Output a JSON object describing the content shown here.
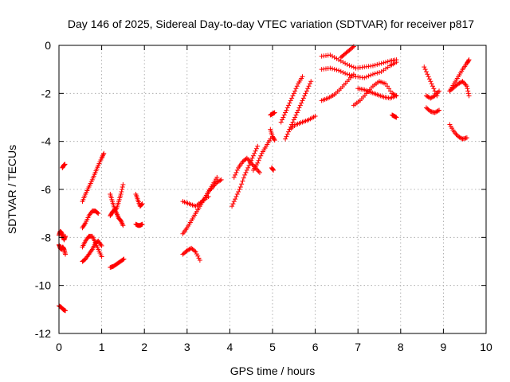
{
  "chart_data": {
    "type": "scatter",
    "title": "Day 146 of 2025, Sidereal Day-to-day VTEC variation (SDTVAR) for receiver p817",
    "xlabel": "GPS time / hours",
    "ylabel": "SDTVAR / TECUs",
    "xlim": [
      0,
      10
    ],
    "ylim": [
      -12,
      0
    ],
    "xticks": [
      "0",
      "1",
      "2",
      "3",
      "4",
      "5",
      "6",
      "7",
      "8",
      "9",
      "10"
    ],
    "yticks": [
      "0",
      "-2",
      "-4",
      "-6",
      "-8",
      "-10",
      "-12"
    ],
    "grid": true,
    "marker": "+",
    "color": "#ff0000",
    "series": [
      {
        "name": "s1",
        "x": [
          0.0,
          0.05,
          0.1,
          0.15
        ],
        "y": [
          -10.85,
          -10.9,
          -11.0,
          -11.05
        ]
      },
      {
        "name": "s2",
        "x": [
          0.0,
          0.03,
          0.06,
          0.09,
          0.12,
          0.15
        ],
        "y": [
          -8.3,
          -8.45,
          -8.5,
          -8.4,
          -8.5,
          -8.7
        ]
      },
      {
        "name": "s3",
        "x": [
          0.0,
          0.03,
          0.06,
          0.09,
          0.12,
          0.15
        ],
        "y": [
          -7.9,
          -7.75,
          -7.8,
          -7.95,
          -8.1,
          -7.95
        ]
      },
      {
        "name": "s4",
        "x": [
          0.08,
          0.11,
          0.14
        ],
        "y": [
          -5.1,
          -5.0,
          -4.95
        ]
      },
      {
        "name": "s5",
        "x": [
          0.55,
          0.62,
          0.7,
          0.78,
          0.85,
          0.92,
          1.0,
          1.05
        ],
        "y": [
          -6.5,
          -6.2,
          -5.9,
          -5.6,
          -5.3,
          -5.0,
          -4.7,
          -4.5
        ]
      },
      {
        "name": "s6",
        "x": [
          0.55,
          0.62,
          0.7,
          0.78,
          0.85,
          0.92
        ],
        "y": [
          -7.6,
          -7.4,
          -7.1,
          -6.9,
          -6.9,
          -7.0
        ]
      },
      {
        "name": "s7",
        "x": [
          0.55,
          0.62,
          0.7,
          0.78,
          0.85,
          0.92,
          1.0
        ],
        "y": [
          -8.4,
          -8.15,
          -7.95,
          -7.95,
          -8.2,
          -8.5,
          -8.8
        ]
      },
      {
        "name": "s8",
        "x": [
          0.55,
          0.62,
          0.7,
          0.78,
          0.85,
          0.92,
          1.0
        ],
        "y": [
          -9.0,
          -8.9,
          -8.7,
          -8.5,
          -8.25,
          -8.15,
          -8.35
        ]
      },
      {
        "name": "s9",
        "x": [
          1.2,
          1.25,
          1.3,
          1.35,
          1.4,
          1.45,
          1.5
        ],
        "y": [
          -6.2,
          -6.5,
          -6.8,
          -7.0,
          -7.2,
          -7.3,
          -7.5
        ]
      },
      {
        "name": "s10",
        "x": [
          1.2,
          1.25,
          1.3,
          1.35,
          1.4,
          1.45,
          1.5
        ],
        "y": [
          -7.1,
          -6.95,
          -6.85,
          -6.8,
          -6.5,
          -6.2,
          -5.8
        ]
      },
      {
        "name": "s11",
        "x": [
          1.2,
          1.28,
          1.36,
          1.44,
          1.52
        ],
        "y": [
          -9.25,
          -9.2,
          -9.1,
          -9.0,
          -8.9
        ]
      },
      {
        "name": "s12",
        "x": [
          1.8,
          1.85,
          1.9,
          1.95
        ],
        "y": [
          -6.2,
          -6.45,
          -6.7,
          -6.6
        ]
      },
      {
        "name": "s13",
        "x": [
          1.8,
          1.85,
          1.9,
          1.95
        ],
        "y": [
          -7.45,
          -7.5,
          -7.5,
          -7.45
        ]
      },
      {
        "name": "s14",
        "x": [
          2.9,
          3.05,
          3.2,
          3.35,
          3.5
        ],
        "y": [
          -6.5,
          -6.6,
          -6.7,
          -6.5,
          -6.3
        ]
      },
      {
        "name": "s15",
        "x": [
          2.9,
          3.0,
          3.1,
          3.2,
          3.3,
          3.4,
          3.5,
          3.6,
          3.7
        ],
        "y": [
          -7.85,
          -7.6,
          -7.3,
          -7.0,
          -6.7,
          -6.4,
          -6.1,
          -5.8,
          -5.5
        ]
      },
      {
        "name": "s16",
        "x": [
          2.9,
          3.0,
          3.1,
          3.2,
          3.3
        ],
        "y": [
          -8.7,
          -8.55,
          -8.45,
          -8.6,
          -8.95
        ]
      },
      {
        "name": "s17",
        "x": [
          3.3,
          3.4,
          3.5,
          3.6,
          3.7,
          3.8
        ],
        "y": [
          -6.6,
          -6.4,
          -6.1,
          -5.9,
          -5.7,
          -5.6
        ]
      },
      {
        "name": "s18",
        "x": [
          4.05,
          4.15,
          4.25,
          4.35,
          4.45,
          4.55,
          4.65
        ],
        "y": [
          -6.7,
          -6.3,
          -5.9,
          -5.4,
          -5.0,
          -4.6,
          -4.2
        ]
      },
      {
        "name": "s19",
        "x": [
          4.1,
          4.2,
          4.3,
          4.4,
          4.5,
          4.6,
          4.7
        ],
        "y": [
          -5.5,
          -5.1,
          -4.85,
          -4.7,
          -4.9,
          -5.1,
          -5.3
        ]
      },
      {
        "name": "s20",
        "x": [
          4.55,
          4.65,
          4.75,
          4.85,
          4.95
        ],
        "y": [
          -5.2,
          -4.9,
          -4.5,
          -4.2,
          -3.9
        ]
      },
      {
        "name": "s21",
        "x": [
          4.95,
          5.0,
          5.05
        ],
        "y": [
          -3.5,
          -3.8,
          -3.95
        ]
      },
      {
        "name": "s22",
        "x": [
          4.95,
          5.0,
          5.05
        ],
        "y": [
          -2.9,
          -2.85,
          -2.8
        ]
      },
      {
        "name": "s23",
        "x": [
          4.98,
          5.02
        ],
        "y": [
          -5.1,
          -5.2
        ]
      },
      {
        "name": "s24",
        "x": [
          5.2,
          5.3,
          5.4,
          5.5,
          5.6,
          5.7
        ],
        "y": [
          -3.2,
          -2.8,
          -2.4,
          -2.0,
          -1.6,
          -1.3
        ]
      },
      {
        "name": "s25",
        "x": [
          5.3,
          5.4,
          5.5,
          5.6,
          5.7,
          5.8,
          5.9
        ],
        "y": [
          -3.9,
          -3.5,
          -3.1,
          -2.7,
          -2.3,
          -1.9,
          -1.5
        ]
      },
      {
        "name": "s26",
        "x": [
          5.4,
          5.55,
          5.7,
          5.85,
          6.0
        ],
        "y": [
          -3.5,
          -3.3,
          -3.2,
          -3.1,
          -2.95
        ]
      },
      {
        "name": "s27",
        "x": [
          6.15,
          6.35,
          6.55,
          6.75,
          6.95,
          7.15,
          7.35,
          7.55,
          7.75,
          7.9
        ],
        "y": [
          -0.45,
          -0.4,
          -0.6,
          -0.8,
          -0.95,
          -0.9,
          -0.85,
          -0.75,
          -0.65,
          -0.6
        ]
      },
      {
        "name": "s28",
        "x": [
          6.15,
          6.35,
          6.55,
          6.75,
          6.95,
          7.15,
          7.35,
          7.55,
          7.75,
          7.9
        ],
        "y": [
          -1.0,
          -0.95,
          -1.05,
          -1.2,
          -1.3,
          -1.35,
          -1.2,
          -1.1,
          -0.85,
          -0.7
        ]
      },
      {
        "name": "s29",
        "x": [
          6.15,
          6.3,
          6.45,
          6.6,
          6.75,
          6.9
        ],
        "y": [
          -2.3,
          -2.2,
          -2.05,
          -1.8,
          -1.5,
          -1.2
        ]
      },
      {
        "name": "s30",
        "x": [
          6.6,
          6.7,
          6.8,
          6.9
        ],
        "y": [
          -0.5,
          -0.35,
          -0.2,
          -0.05
        ]
      },
      {
        "name": "s31",
        "x": [
          6.9,
          7.05,
          7.2,
          7.35,
          7.5,
          7.65,
          7.8,
          7.9
        ],
        "y": [
          -2.5,
          -2.3,
          -2.0,
          -1.7,
          -1.5,
          -1.6,
          -2.0,
          -2.1
        ]
      },
      {
        "name": "s32",
        "x": [
          7.0,
          7.15,
          7.3,
          7.45,
          7.6,
          7.75,
          7.9
        ],
        "y": [
          -1.8,
          -1.85,
          -1.95,
          -2.05,
          -2.15,
          -2.2,
          -2.1
        ]
      },
      {
        "name": "s33",
        "x": [
          7.8,
          7.85,
          7.9
        ],
        "y": [
          -2.9,
          -2.95,
          -3.0
        ]
      },
      {
        "name": "s34",
        "x": [
          8.55,
          8.65,
          8.75,
          8.85
        ],
        "y": [
          -0.9,
          -1.3,
          -1.7,
          -2.1
        ]
      },
      {
        "name": "s35",
        "x": [
          8.6,
          8.7,
          8.8,
          8.9
        ],
        "y": [
          -2.1,
          -2.2,
          -2.1,
          -1.9
        ]
      },
      {
        "name": "s36",
        "x": [
          8.6,
          8.7,
          8.8,
          8.9
        ],
        "y": [
          -2.6,
          -2.75,
          -2.8,
          -2.7
        ]
      },
      {
        "name": "s37",
        "x": [
          9.15,
          9.25,
          9.35,
          9.45,
          9.55,
          9.6
        ],
        "y": [
          -1.9,
          -1.6,
          -1.3,
          -1.0,
          -0.75,
          -0.6
        ]
      },
      {
        "name": "s38",
        "x": [
          9.15,
          9.25,
          9.35,
          9.45,
          9.55,
          9.6
        ],
        "y": [
          -1.9,
          -1.75,
          -1.6,
          -1.5,
          -1.7,
          -2.1
        ]
      },
      {
        "name": "s39",
        "x": [
          9.15,
          9.25,
          9.35,
          9.45,
          9.55
        ],
        "y": [
          -3.3,
          -3.6,
          -3.8,
          -3.9,
          -3.85
        ]
      }
    ]
  }
}
